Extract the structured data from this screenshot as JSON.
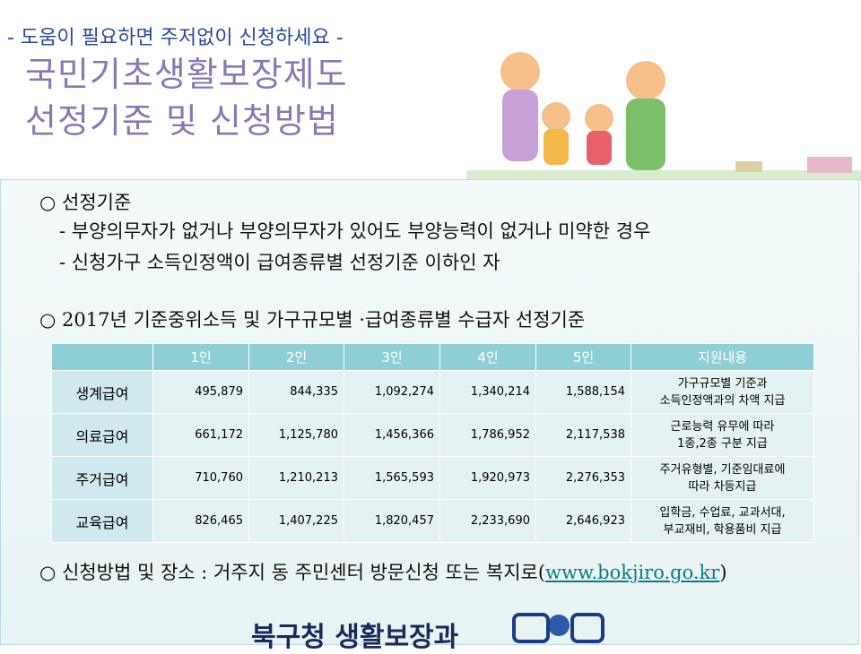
{
  "header": {
    "tagline": "- 도움이 필요하면 주저없이 신청하세요 -",
    "title_line1": "국민기초생활보장제도",
    "title_line2": "선정기준 및 신청방법"
  },
  "sections": {
    "criteria": {
      "heading": "○ 선정기준",
      "items": [
        "- 부양의무자가 없거나 부양의무자가 있어도 부양능력이 없거나 미약한 경우",
        "- 신청가구 소득인정액이 급여종류별 선정기준 이하인 자"
      ]
    },
    "table_heading": "○ 2017년  기준중위소득 및 가구규모별 ·급여종류별 수급자 선정기준",
    "apply": {
      "text": "○ 신청방법 및 장소 : 거주지 동 주민센터 방문신청 또는 복지로(",
      "link": "www.bokjiro.go.kr",
      "close": ")"
    }
  },
  "table": {
    "columns": [
      "1인",
      "2인",
      "3인",
      "4인",
      "5인",
      "지원내용"
    ],
    "rows": [
      [
        "생계급여",
        "495,879",
        "844,335",
        "1,092,274",
        "1,340,214",
        "1,588,154",
        "가구규모별  기준과\n소득인정액과의 차액 지급"
      ],
      [
        "의료급여",
        "661,172",
        "1,125,780",
        "1,456,366",
        "1,786,952",
        "2,117,538",
        "근로능력 유무에 따라\n1종,2종 구분 지급"
      ],
      [
        "주거급여",
        "710,760",
        "1,210,213",
        "1,565,593",
        "1,920,973",
        "2,276,353",
        "주거유형별, 기준임대료에\n따라 차등지급"
      ],
      [
        "교육급여",
        "826,465",
        "1,407,225",
        "1,820,457",
        "2,233,690",
        "2,646,923",
        "입학금, 수업료, 교과서대,\n부교재비, 학용품비 지급"
      ]
    ]
  },
  "footer": {
    "department": "북구청 생활보장과"
  }
}
